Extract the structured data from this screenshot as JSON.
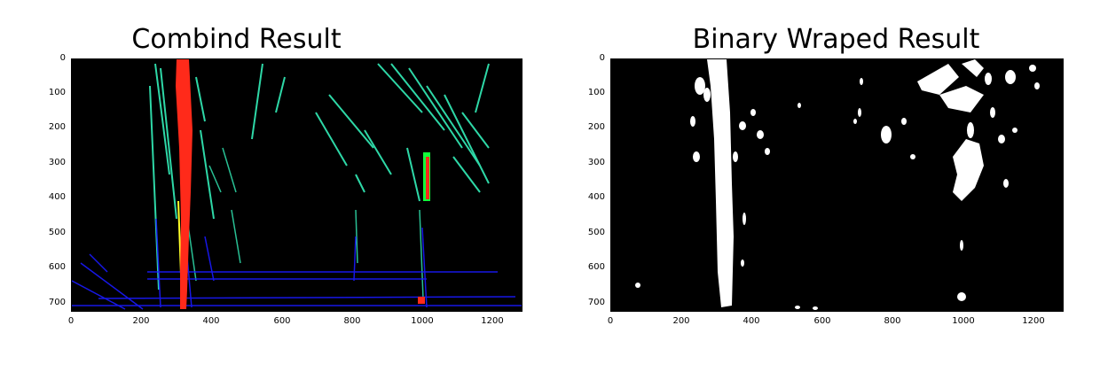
{
  "figures": [
    {
      "title": "Combind Result",
      "xticks": [
        "0",
        "200",
        "400",
        "600",
        "800",
        "1000",
        "1200"
      ],
      "yticks": [
        "0",
        "100",
        "200",
        "300",
        "400",
        "500",
        "600",
        "700"
      ],
      "image_desc_icon": "combined-threshold-image-icon"
    },
    {
      "title": "Binary Wraped Result",
      "xticks": [
        "0",
        "200",
        "400",
        "600",
        "800",
        "1000",
        "1200"
      ],
      "yticks": [
        "0",
        "100",
        "200",
        "300",
        "400",
        "500",
        "600",
        "700"
      ],
      "image_desc_icon": "binary-warped-image-icon"
    }
  ],
  "colors": {
    "lane_red": "#ff2a1a",
    "lane_green": "#12ff3a",
    "noise_cyan": "#34f0ba",
    "noise_blue": "#1a1aff",
    "noise_yellow": "#ffff28",
    "binary_white": "#ffffff"
  }
}
